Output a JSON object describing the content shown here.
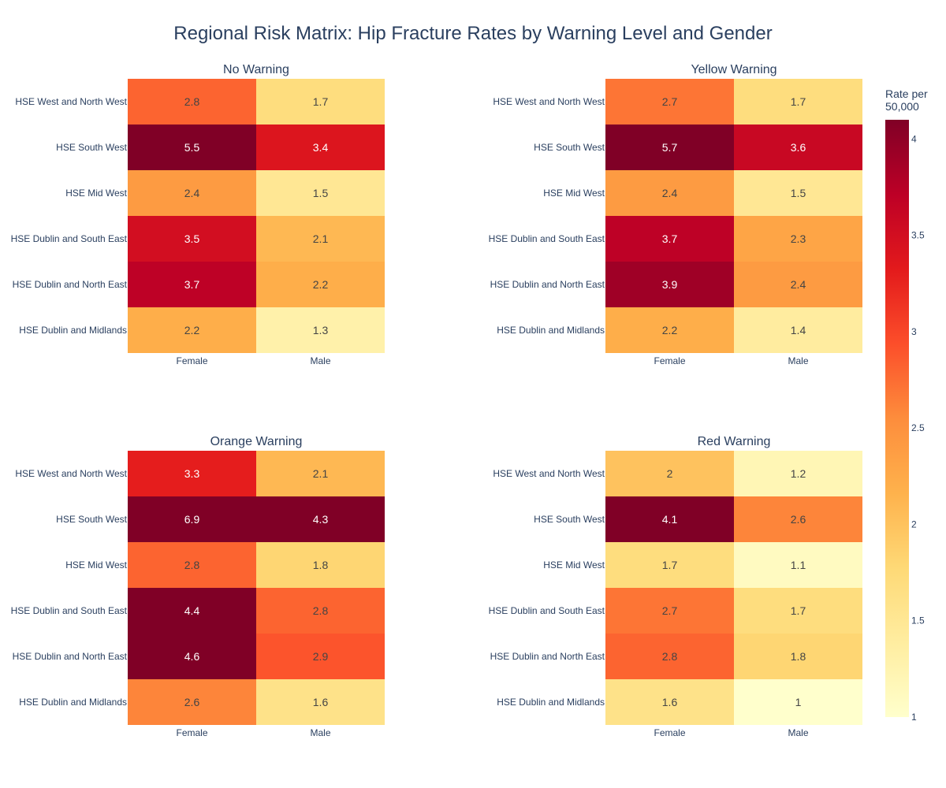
{
  "chart_data": {
    "type": "heatmap",
    "title": "Regional Risk Matrix: Hip Fracture Rates by Warning Level and Gender",
    "categories_x": [
      "Female",
      "Male"
    ],
    "categories_y": [
      "HSE West and North West",
      "HSE South West",
      "HSE Mid West",
      "HSE Dublin and South East",
      "HSE Dublin and North East",
      "HSE Dublin and Midlands"
    ],
    "colorscale": "YlOrRd",
    "colorscale_stops": [
      "#ffffcc",
      "#ffeda0",
      "#fed976",
      "#feb24c",
      "#fd8d3c",
      "#fc4e2a",
      "#e31a1c",
      "#bd0026",
      "#800026"
    ],
    "colorbar": {
      "title_lines": [
        "Rate per",
        "50,000"
      ],
      "range": [
        1,
        4.1
      ],
      "ticks": [
        1,
        1.5,
        2,
        2.5,
        3,
        3.5,
        4
      ]
    },
    "panels": [
      {
        "title": "No Warning",
        "values": [
          [
            2.8,
            1.7
          ],
          [
            5.5,
            3.4
          ],
          [
            2.4,
            1.5
          ],
          [
            3.5,
            2.1
          ],
          [
            3.7,
            2.2
          ],
          [
            2.2,
            1.3
          ]
        ],
        "labels": [
          [
            "2.8",
            "1.7"
          ],
          [
            "5.5",
            "3.4"
          ],
          [
            "2.4",
            "1.5"
          ],
          [
            "3.5",
            "2.1"
          ],
          [
            "3.7",
            "2.2"
          ],
          [
            "2.2",
            "1.3"
          ]
        ]
      },
      {
        "title": "Yellow Warning",
        "values": [
          [
            2.7,
            1.7
          ],
          [
            5.7,
            3.6
          ],
          [
            2.4,
            1.5
          ],
          [
            3.7,
            2.3
          ],
          [
            3.9,
            2.4
          ],
          [
            2.2,
            1.4
          ]
        ],
        "labels": [
          [
            "2.7",
            "1.7"
          ],
          [
            "5.7",
            "3.6"
          ],
          [
            "2.4",
            "1.5"
          ],
          [
            "3.7",
            "2.3"
          ],
          [
            "3.9",
            "2.4"
          ],
          [
            "2.2",
            "1.4"
          ]
        ]
      },
      {
        "title": "Orange Warning",
        "values": [
          [
            3.3,
            2.1
          ],
          [
            6.9,
            4.3
          ],
          [
            2.8,
            1.8
          ],
          [
            4.4,
            2.8
          ],
          [
            4.6,
            2.9
          ],
          [
            2.6,
            1.6
          ]
        ],
        "labels": [
          [
            "3.3",
            "2.1"
          ],
          [
            "6.9",
            "4.3"
          ],
          [
            "2.8",
            "1.8"
          ],
          [
            "4.4",
            "2.8"
          ],
          [
            "4.6",
            "2.9"
          ],
          [
            "2.6",
            "1.6"
          ]
        ]
      },
      {
        "title": "Red Warning",
        "values": [
          [
            2.0,
            1.2
          ],
          [
            4.1,
            2.6
          ],
          [
            1.7,
            1.1
          ],
          [
            2.7,
            1.7
          ],
          [
            2.8,
            1.8
          ],
          [
            1.6,
            1.0
          ]
        ],
        "labels": [
          [
            "2",
            "1.2"
          ],
          [
            "4.1",
            "2.6"
          ],
          [
            "1.7",
            "1.1"
          ],
          [
            "2.7",
            "1.7"
          ],
          [
            "2.8",
            "1.8"
          ],
          [
            "1.6",
            "1"
          ]
        ]
      }
    ]
  }
}
